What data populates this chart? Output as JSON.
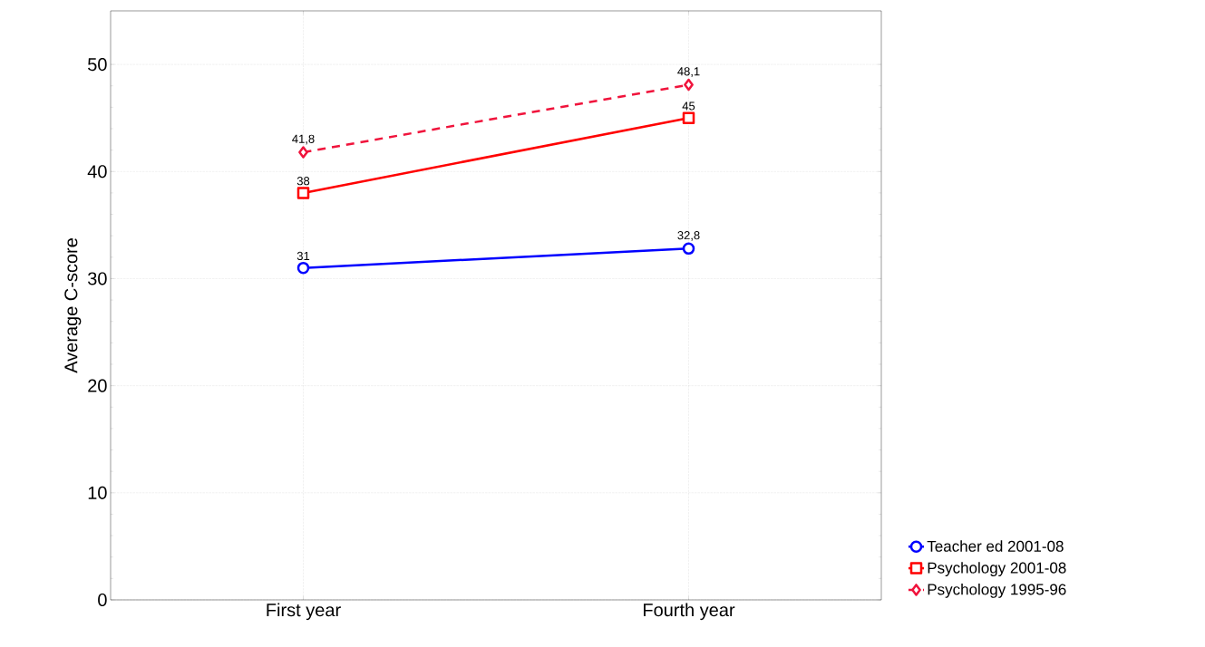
{
  "chart_data": {
    "type": "line",
    "ylabel": "Average C-score",
    "categories": [
      "First year",
      "Fourth year"
    ],
    "ylim": [
      0,
      55
    ],
    "yticks": [
      0,
      10,
      20,
      30,
      40,
      50
    ],
    "grid": true,
    "legend": "bottom right",
    "series": [
      {
        "name": "Teacher ed 2001-08",
        "color": "#0000ff",
        "marker": "circle",
        "line_style": "solid",
        "values": [
          31,
          32.8
        ],
        "value_labels": [
          "31",
          "32,8"
        ]
      },
      {
        "name": "Psychology 2001-08",
        "color": "#ff0000",
        "marker": "square",
        "line_style": "solid",
        "values": [
          38,
          45
        ],
        "value_labels": [
          "38",
          "45"
        ]
      },
      {
        "name": "Psychology 1995-96",
        "color": "#f0143c",
        "marker": "diamond",
        "line_style": "dashed",
        "values": [
          41.8,
          48.1
        ],
        "value_labels": [
          "41,8",
          "48,1"
        ]
      }
    ]
  }
}
